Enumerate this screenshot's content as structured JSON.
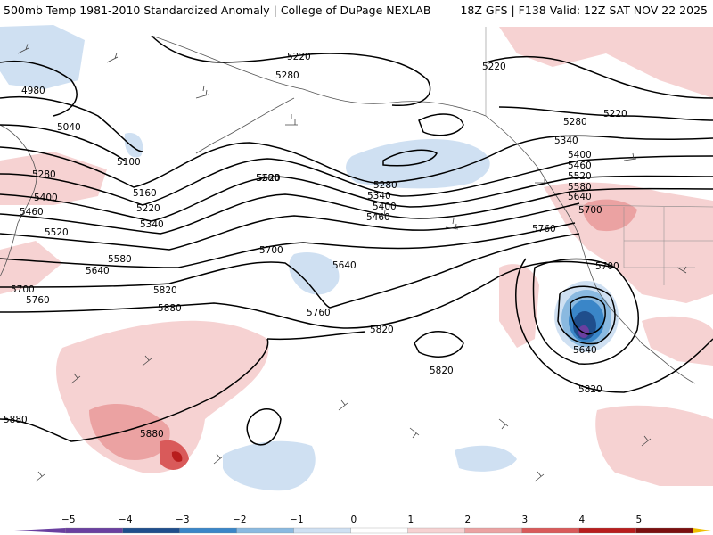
{
  "header": {
    "left_title": "500mb Temp 1981-2010 Standardized Anomaly | College of DuPage NEXLAB",
    "right_title": "18Z GFS | F138 Valid: 12Z SAT NOV 22 2025"
  },
  "map": {
    "region": "North Pacific / North America",
    "contour_labels": [
      "4980",
      "5040",
      "5100",
      "5160",
      "5220",
      "5220",
      "5220",
      "5220",
      "5280",
      "5280",
      "5280",
      "5280",
      "5280",
      "5340",
      "5340",
      "5340",
      "5400",
      "5400",
      "5400",
      "5460",
      "5460",
      "5460",
      "5520",
      "5520",
      "5520",
      "5580",
      "5580",
      "5640",
      "5640",
      "5640",
      "5640",
      "5700",
      "5700",
      "5700",
      "5700",
      "5760",
      "5760",
      "5760",
      "5820",
      "5820",
      "5820",
      "5820",
      "5880",
      "5880",
      "5880"
    ]
  },
  "colorbar": {
    "tick_labels": [
      "−5",
      "−4",
      "−3",
      "−2",
      "−1",
      "0",
      "1",
      "2",
      "3",
      "4",
      "5"
    ],
    "colors": {
      "minus5": "#6a3fa0",
      "minus4": "#1f4e8c",
      "minus3": "#3a86c8",
      "minus2": "#8ab9e0",
      "minus1": "#cfe0f2",
      "zero": "#ffffff",
      "plus1": "#f6d2d2",
      "plus2": "#eba2a2",
      "plus3": "#d95a5a",
      "plus4": "#b81d1d",
      "plus5": "#7a0f0f",
      "overflow": "#f0c000"
    }
  }
}
